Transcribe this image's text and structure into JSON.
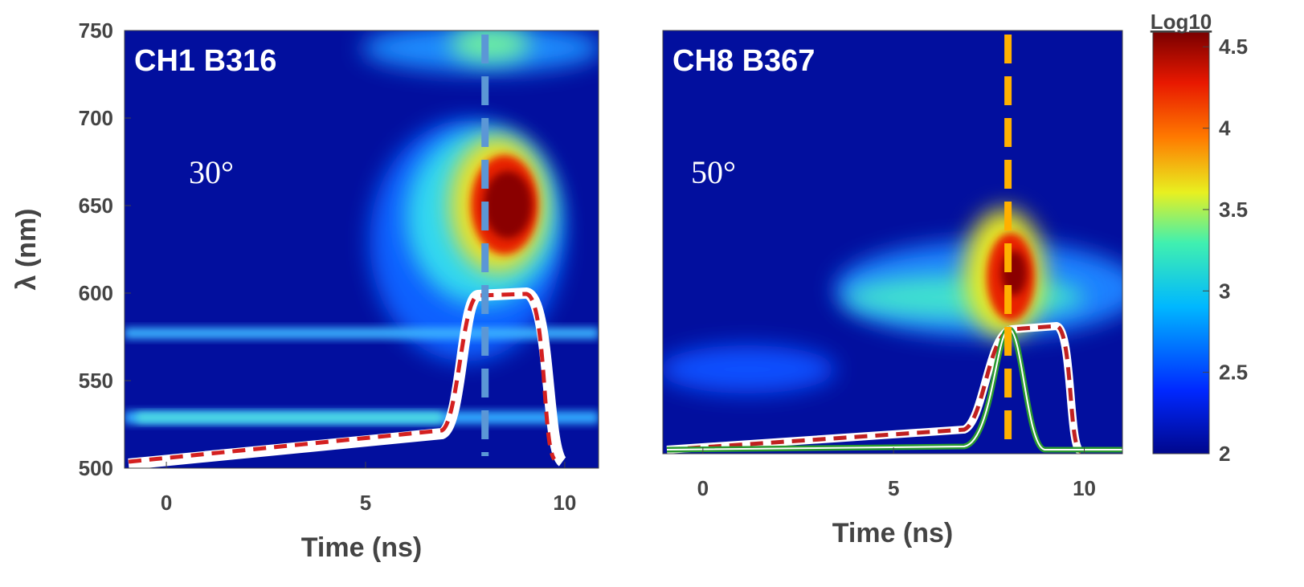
{
  "chart_data": [
    {
      "type": "heatmap",
      "panel_label": "CH1 B316",
      "annotation": "30°",
      "xlabel": "Time (ns)",
      "ylabel": "λ (nm)",
      "xlim": [
        -1.05,
        10.85
      ],
      "ylim": [
        500,
        750
      ],
      "xticks": [
        0,
        5,
        10
      ],
      "yticks": [
        500,
        550,
        600,
        650,
        700,
        750
      ],
      "marker_x": 8,
      "marker_color": "#5b97d6"
    },
    {
      "type": "heatmap",
      "panel_label": "CH8 B367",
      "annotation": "50°",
      "xlabel": "Time (ns)",
      "xlim": [
        -1.05,
        11
      ],
      "xticks": [
        0,
        5,
        10
      ],
      "marker_x": 8,
      "marker_color": "#ffb000"
    },
    {
      "type": "colorbar",
      "label": "Log10",
      "lim": [
        2,
        4.59
      ],
      "ticks": [
        2,
        2.5,
        3,
        3.5,
        4,
        4.5
      ]
    }
  ]
}
